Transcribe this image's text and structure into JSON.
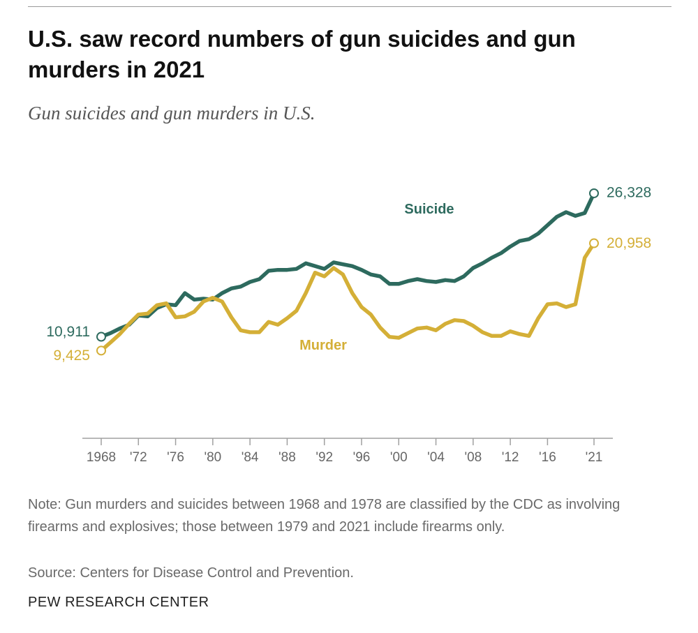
{
  "chart_data": {
    "type": "line",
    "title": "U.S. saw record numbers of gun suicides and gun murders in 2021",
    "subtitle": "Gun suicides and gun murders in U.S.",
    "x": [
      1968,
      1969,
      1970,
      1971,
      1972,
      1973,
      1974,
      1975,
      1976,
      1977,
      1978,
      1979,
      1980,
      1981,
      1982,
      1983,
      1984,
      1985,
      1986,
      1987,
      1988,
      1989,
      1990,
      1991,
      1992,
      1993,
      1994,
      1995,
      1996,
      1997,
      1998,
      1999,
      2000,
      2001,
      2002,
      2003,
      2004,
      2005,
      2006,
      2007,
      2008,
      2009,
      2010,
      2011,
      2012,
      2013,
      2014,
      2015,
      2016,
      2017,
      2018,
      2019,
      2020,
      2021
    ],
    "xlim": [
      1968,
      2021
    ],
    "ylim": [
      0,
      30000
    ],
    "x_ticks": [
      {
        "year": 1968,
        "label": "1968"
      },
      {
        "year": 1972,
        "label": "'72"
      },
      {
        "year": 1976,
        "label": "'76"
      },
      {
        "year": 1980,
        "label": "'80"
      },
      {
        "year": 1984,
        "label": "'84"
      },
      {
        "year": 1988,
        "label": "'88"
      },
      {
        "year": 1992,
        "label": "'92"
      },
      {
        "year": 1996,
        "label": "'96"
      },
      {
        "year": 2000,
        "label": "'00"
      },
      {
        "year": 2004,
        "label": "'04"
      },
      {
        "year": 2008,
        "label": "'08"
      },
      {
        "year": 2012,
        "label": "'12"
      },
      {
        "year": 2016,
        "label": "'16"
      },
      {
        "year": 2021,
        "label": "'21"
      }
    ],
    "series": [
      {
        "name": "Suicide",
        "color": "#2d6a5e",
        "start_label": "10,911",
        "end_label": "26,328",
        "values": [
          10911,
          11300,
          11800,
          12200,
          13200,
          13100,
          14000,
          14400,
          14300,
          15600,
          14900,
          15000,
          14900,
          15600,
          16100,
          16300,
          16800,
          17100,
          18000,
          18100,
          18100,
          18200,
          18800,
          18500,
          18200,
          18900,
          18700,
          18500,
          18100,
          17600,
          17400,
          16600,
          16600,
          16900,
          17100,
          16900,
          16800,
          17000,
          16900,
          17400,
          18300,
          18800,
          19400,
          19900,
          20600,
          21200,
          21400,
          22000,
          22900,
          23800,
          24300,
          23900,
          24200,
          26328
        ]
      },
      {
        "name": "Murder",
        "color": "#d4af37",
        "start_label": "9,425",
        "end_label": "20,958",
        "values": [
          9425,
          10300,
          11200,
          12300,
          13300,
          13400,
          14300,
          14500,
          13000,
          13100,
          13600,
          14700,
          15100,
          14700,
          13000,
          11600,
          11400,
          11400,
          12500,
          12200,
          12900,
          13700,
          15600,
          17800,
          17400,
          18300,
          17600,
          15600,
          14100,
          13300,
          11900,
          10900,
          10800,
          11300,
          11800,
          11900,
          11600,
          12300,
          12700,
          12600,
          12100,
          11400,
          11000,
          11000,
          11500,
          11200,
          11000,
          12900,
          14400,
          14500,
          14100,
          14400,
          19400,
          20958
        ]
      }
    ]
  },
  "note": "Note: Gun murders and suicides between 1968 and 1978 are classified by the CDC as involving firearms and explosives; those between 1979 and 2021 include firearms only.",
  "source": "Source: Centers for Disease Control and Prevention.",
  "brand": "PEW RESEARCH CENTER"
}
